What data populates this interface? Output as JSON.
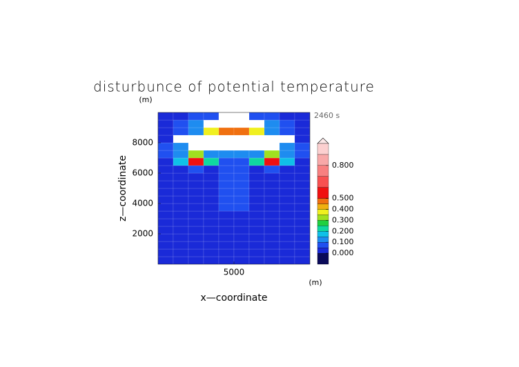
{
  "chart_data": {
    "type": "contour",
    "title": "disturbunce of potential temperature",
    "time_label": "2460 s",
    "x_label": "x—coordinate",
    "x_unit": "(m)",
    "y_label": "z—coordinate",
    "y_unit": "(m)",
    "xlim": [
      0,
      10000
    ],
    "ylim": [
      0,
      10000
    ],
    "xticks": [
      5000
    ],
    "yticks": [
      2000,
      4000,
      6000,
      8000
    ],
    "x": [
      500,
      1500,
      2500,
      3500,
      4500,
      5500,
      6500,
      7500,
      8500,
      9500
    ],
    "y": [
      250,
      750,
      1250,
      1750,
      2250,
      2750,
      3250,
      3750,
      4250,
      4750,
      5250,
      5750,
      6250,
      6750,
      7250,
      7750,
      8250,
      8750,
      9250,
      9750
    ],
    "z": [
      [
        0.02,
        0.03,
        0.03,
        0.03,
        0.03,
        0.03,
        0.03,
        0.03,
        0.03,
        0.02
      ],
      [
        0.02,
        0.03,
        0.03,
        0.03,
        0.04,
        0.04,
        0.03,
        0.03,
        0.03,
        0.02
      ],
      [
        0.02,
        0.03,
        0.03,
        0.03,
        0.04,
        0.04,
        0.03,
        0.03,
        0.03,
        0.02
      ],
      [
        0.02,
        0.03,
        0.03,
        0.03,
        0.04,
        0.04,
        0.03,
        0.03,
        0.03,
        0.02
      ],
      [
        0.02,
        0.03,
        0.03,
        0.03,
        0.04,
        0.04,
        0.03,
        0.03,
        0.03,
        0.02
      ],
      [
        0.02,
        0.03,
        0.03,
        0.03,
        0.04,
        0.04,
        0.03,
        0.03,
        0.03,
        0.02
      ],
      [
        0.02,
        0.03,
        0.03,
        0.03,
        0.04,
        0.04,
        0.03,
        0.03,
        0.03,
        0.02
      ],
      [
        0.02,
        0.03,
        0.03,
        0.03,
        0.06,
        0.06,
        0.03,
        0.03,
        0.03,
        0.02
      ],
      [
        0.02,
        0.03,
        0.04,
        0.04,
        0.07,
        0.07,
        0.04,
        0.04,
        0.03,
        0.02
      ],
      [
        0.02,
        0.03,
        0.04,
        0.04,
        0.07,
        0.07,
        0.04,
        0.04,
        0.03,
        0.02
      ],
      [
        0.02,
        0.03,
        0.04,
        0.04,
        0.07,
        0.07,
        0.04,
        0.04,
        0.03,
        0.02
      ],
      [
        0.02,
        0.03,
        0.04,
        0.04,
        0.07,
        0.07,
        0.04,
        0.04,
        0.03,
        0.02
      ],
      [
        0.02,
        0.03,
        0.08,
        0.04,
        0.08,
        0.08,
        0.04,
        0.08,
        0.03,
        0.02
      ],
      [
        0.02,
        0.15,
        0.55,
        0.2,
        0.08,
        0.08,
        0.2,
        0.55,
        0.15,
        0.02
      ],
      [
        0.08,
        0.12,
        0.3,
        0.12,
        0.1,
        0.1,
        0.12,
        0.3,
        0.12,
        0.08
      ],
      [
        0.05,
        0.1,
        null,
        null,
        null,
        null,
        null,
        null,
        0.1,
        0.05
      ],
      [
        0.04,
        null,
        null,
        null,
        null,
        null,
        null,
        null,
        null,
        0.04
      ],
      [
        0.04,
        0.08,
        0.12,
        0.35,
        0.45,
        0.45,
        0.35,
        0.12,
        0.08,
        0.04
      ],
      [
        0.03,
        0.06,
        0.1,
        null,
        null,
        null,
        null,
        0.1,
        0.06,
        0.03
      ],
      [
        0.02,
        0.04,
        0.06,
        0.08,
        null,
        null,
        0.08,
        0.06,
        0.04,
        0.02
      ]
    ],
    "colorbar": {
      "levels": [
        -0.1,
        0,
        0.05,
        0.1,
        0.15,
        0.2,
        0.25,
        0.3,
        0.35,
        0.4,
        0.45,
        0.5,
        0.6,
        0.7,
        0.8,
        0.9,
        1.0
      ],
      "colors": [
        "#0a0a5a",
        "#1a2ad8",
        "#2050f0",
        "#1e8cf0",
        "#10c0e8",
        "#10d8a0",
        "#20d040",
        "#a0e020",
        "#f0f020",
        "#f0b010",
        "#f07010",
        "#f01010",
        "#f85050",
        "#f88080",
        "#f8a8a8",
        "#fcd0d0"
      ],
      "ticks": [
        {
          "value": 0,
          "label": "0.000"
        },
        {
          "value": 0.1,
          "label": "0.100"
        },
        {
          "value": 0.2,
          "label": "0.200"
        },
        {
          "value": 0.3,
          "label": "0.300"
        },
        {
          "value": 0.4,
          "label": "0.400"
        },
        {
          "value": 0.5,
          "label": "0.500"
        },
        {
          "value": 0.8,
          "label": "0.800"
        }
      ]
    }
  }
}
